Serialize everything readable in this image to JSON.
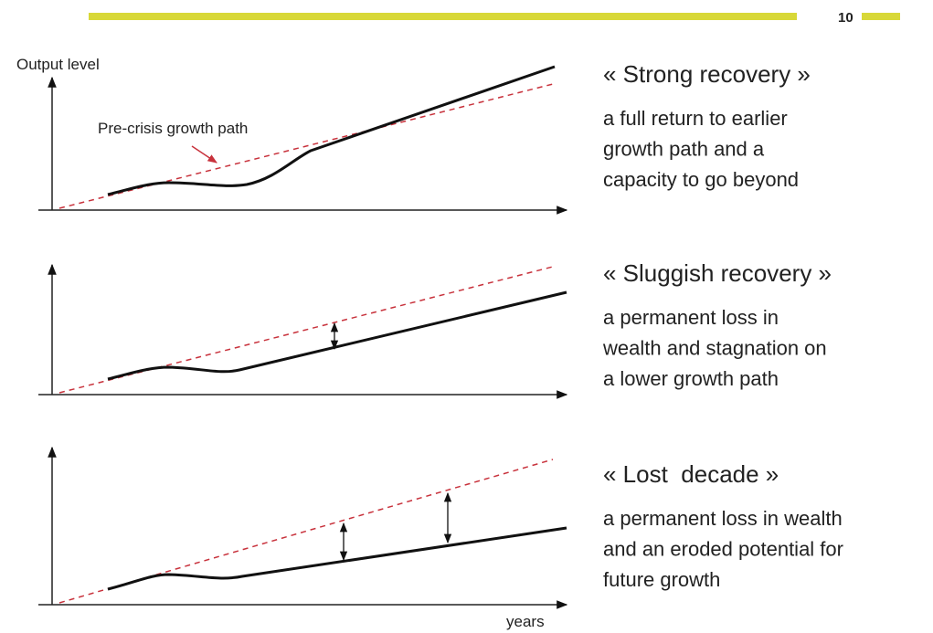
{
  "page_number": "10",
  "y_axis_label": "Output level",
  "x_axis_label": "years",
  "annotation": "Pre-crisis growth path",
  "scenarios": [
    {
      "title": "« Strong recovery »",
      "description": [
        "a full return to earlier",
        "growth path and a",
        "capacity to go beyond"
      ]
    },
    {
      "title": "« Sluggish recovery »",
      "description": [
        "a permanent loss in",
        "wealth and stagnation on",
        "a lower growth path"
      ]
    },
    {
      "title": "« Lost  decade »",
      "description": [
        "a permanent loss in wealth",
        "and an eroded potential for",
        "future growth"
      ]
    }
  ]
}
